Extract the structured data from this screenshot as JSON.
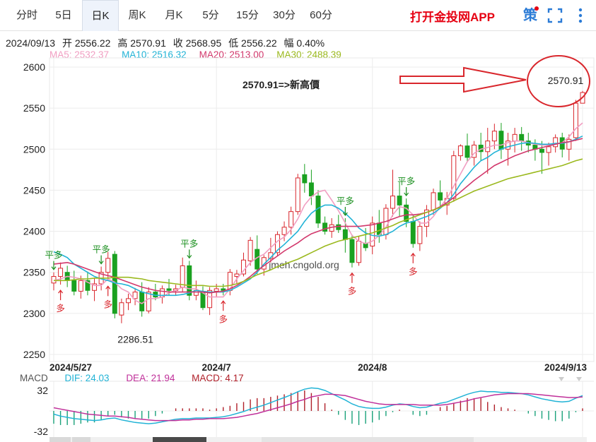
{
  "tabs": [
    {
      "label": "分时",
      "active": false
    },
    {
      "label": "5日",
      "active": false
    },
    {
      "label": "日K",
      "active": true
    },
    {
      "label": "周K",
      "active": false
    },
    {
      "label": "月K",
      "active": false
    },
    {
      "label": "5分",
      "active": false
    },
    {
      "label": "15分",
      "active": false
    },
    {
      "label": "30分",
      "active": false
    },
    {
      "label": "60分",
      "active": false
    }
  ],
  "toolbar": {
    "app_link": "打开金投网APP",
    "strategy_icon_text": "策",
    "fullscreen_icon": "fullscreen-icon",
    "more_icon": "more-icon"
  },
  "info": {
    "date": "2024/09/13",
    "open_label": "开",
    "open": "2556.22",
    "high_label": "高",
    "high": "2570.91",
    "close_label": "收",
    "close": "2568.95",
    "low_label": "低",
    "low": "2556.22",
    "change_label": "幅",
    "change": "0.40%"
  },
  "ma_legend": [
    {
      "label": "MA5: 2532.37",
      "color": "#f19ec2"
    },
    {
      "label": "MA10: 2516.32",
      "color": "#21b3d6"
    },
    {
      "label": "MA20: 2513.00",
      "color": "#d2386c"
    },
    {
      "label": "MA30: 2488.39",
      "color": "#9bb91e"
    }
  ],
  "annotation": {
    "text": "2570.91=>新高價",
    "color": "#d9262c"
  },
  "watermark": "jmeh.cngold.org",
  "macd_legend": {
    "title": "MACD",
    "dif": "DIF: 24.03",
    "dea": "DEA: 21.94",
    "macd": "MACD: 4.17"
  },
  "colors": {
    "up": "#d9262c",
    "down": "#1aa120",
    "grid": "#ececec"
  },
  "chart_data": {
    "type": "candlestick",
    "ylim": [
      2250,
      2600
    ],
    "yticks": [
      2250,
      2300,
      2350,
      2400,
      2450,
      2500,
      2550,
      2600
    ],
    "xticks": [
      {
        "label": "2024/5/27",
        "index": 0
      },
      {
        "label": "2024/7",
        "index": 24
      },
      {
        "label": "2024/8",
        "index": 47
      },
      {
        "label": "2024/9/13",
        "index": 78
      }
    ],
    "labels": {
      "low_point": "2286.51",
      "high_point": "2570.91"
    },
    "candles": [
      [
        2337,
        2350,
        2328,
        2345
      ],
      [
        2345,
        2362,
        2335,
        2355
      ],
      [
        2350,
        2358,
        2332,
        2340
      ],
      [
        2340,
        2352,
        2322,
        2327
      ],
      [
        2327,
        2346,
        2318,
        2340
      ],
      [
        2340,
        2351,
        2322,
        2328
      ],
      [
        2328,
        2343,
        2315,
        2336
      ],
      [
        2336,
        2357,
        2328,
        2350
      ],
      [
        2350,
        2375,
        2340,
        2367
      ],
      [
        2372,
        2376,
        2294,
        2300
      ],
      [
        2298,
        2318,
        2288,
        2313
      ],
      [
        2313,
        2324,
        2304,
        2318
      ],
      [
        2318,
        2331,
        2310,
        2326
      ],
      [
        2326,
        2338,
        2296,
        2303
      ],
      [
        2303,
        2332,
        2300,
        2326
      ],
      [
        2326,
        2336,
        2316,
        2320
      ],
      [
        2320,
        2334,
        2312,
        2330
      ],
      [
        2330,
        2342,
        2322,
        2328
      ],
      [
        2328,
        2335,
        2322,
        2330
      ],
      [
        2332,
        2368,
        2326,
        2358
      ],
      [
        2358,
        2364,
        2316,
        2322
      ],
      [
        2322,
        2340,
        2316,
        2328
      ],
      [
        2326,
        2333,
        2304,
        2307
      ],
      [
        2307,
        2332,
        2298,
        2328
      ],
      [
        2327,
        2336,
        2320,
        2330
      ],
      [
        2330,
        2336,
        2322,
        2328
      ],
      [
        2328,
        2354,
        2322,
        2350
      ],
      [
        2345,
        2353,
        2336,
        2348
      ],
      [
        2348,
        2374,
        2345,
        2365
      ],
      [
        2364,
        2393,
        2358,
        2389
      ],
      [
        2378,
        2395,
        2348,
        2354
      ],
      [
        2354,
        2371,
        2346,
        2368
      ],
      [
        2367,
        2392,
        2362,
        2374
      ],
      [
        2374,
        2400,
        2370,
        2396
      ],
      [
        2396,
        2412,
        2388,
        2405
      ],
      [
        2405,
        2430,
        2396,
        2424
      ],
      [
        2424,
        2470,
        2420,
        2465
      ],
      [
        2469,
        2482,
        2447,
        2459
      ],
      [
        2459,
        2475,
        2432,
        2443
      ],
      [
        2443,
        2450,
        2404,
        2410
      ],
      [
        2410,
        2418,
        2396,
        2400
      ],
      [
        2400,
        2416,
        2392,
        2408
      ],
      [
        2408,
        2420,
        2398,
        2402
      ],
      [
        2402,
        2416,
        2374,
        2390
      ],
      [
        2390,
        2396,
        2356,
        2362
      ],
      [
        2362,
        2394,
        2358,
        2388
      ],
      [
        2385,
        2404,
        2376,
        2380
      ],
      [
        2382,
        2418,
        2372,
        2410
      ],
      [
        2410,
        2426,
        2386,
        2396
      ],
      [
        2396,
        2433,
        2390,
        2428
      ],
      [
        2428,
        2475,
        2418,
        2443
      ],
      [
        2443,
        2460,
        2418,
        2432
      ],
      [
        2432,
        2440,
        2405,
        2412
      ],
      [
        2412,
        2420,
        2380,
        2385
      ],
      [
        2385,
        2412,
        2376,
        2406
      ],
      [
        2406,
        2432,
        2393,
        2426
      ],
      [
        2426,
        2452,
        2420,
        2447
      ],
      [
        2447,
        2462,
        2428,
        2438
      ],
      [
        2432,
        2448,
        2420,
        2440
      ],
      [
        2440,
        2498,
        2436,
        2492
      ],
      [
        2492,
        2506,
        2486,
        2504
      ],
      [
        2504,
        2519,
        2484,
        2490
      ],
      [
        2490,
        2510,
        2480,
        2505
      ],
      [
        2505,
        2520,
        2486,
        2497
      ],
      [
        2497,
        2526,
        2470,
        2510
      ],
      [
        2510,
        2531,
        2500,
        2522
      ],
      [
        2522,
        2532,
        2488,
        2500
      ],
      [
        2500,
        2520,
        2480,
        2510
      ],
      [
        2510,
        2526,
        2496,
        2518
      ],
      [
        2518,
        2527,
        2498,
        2510
      ],
      [
        2510,
        2520,
        2496,
        2505
      ],
      [
        2505,
        2512,
        2486,
        2500
      ],
      [
        2500,
        2510,
        2470,
        2496
      ],
      [
        2496,
        2508,
        2480,
        2503
      ],
      [
        2503,
        2518,
        2496,
        2514
      ],
      [
        2514,
        2520,
        2490,
        2500
      ],
      [
        2500,
        2518,
        2486,
        2512
      ],
      [
        2514,
        2560,
        2510,
        2556
      ],
      [
        2556,
        2571,
        2556,
        2569
      ]
    ],
    "series": [
      {
        "name": "MA5",
        "color": "#f19ec2",
        "values": [
          2340,
          2342,
          2345,
          2344,
          2342,
          2338,
          2334,
          2334,
          2342,
          2338,
          2330,
          2326,
          2316,
          2312,
          2318,
          2318,
          2320,
          2325,
          2328,
          2332,
          2330,
          2330,
          2325,
          2320,
          2320,
          2320,
          2330,
          2342,
          2352,
          2362,
          2368,
          2372,
          2380,
          2388,
          2393,
          2402,
          2415,
          2432,
          2442,
          2448,
          2450,
          2438,
          2425,
          2410,
          2395,
          2388,
          2385,
          2388,
          2395,
          2405,
          2420,
          2430,
          2428,
          2420,
          2410,
          2410,
          2418,
          2430,
          2440,
          2455,
          2470,
          2485,
          2495,
          2500,
          2502,
          2505,
          2505,
          2508,
          2510,
          2510,
          2508,
          2506,
          2505,
          2505,
          2506,
          2508,
          2515,
          2525,
          2532
        ]
      },
      {
        "name": "MA10",
        "color": "#21b3d6",
        "values": [
          2375,
          2372,
          2368,
          2360,
          2355,
          2350,
          2345,
          2342,
          2340,
          2337,
          2336,
          2334,
          2330,
          2326,
          2324,
          2322,
          2322,
          2322,
          2322,
          2323,
          2325,
          2328,
          2327,
          2326,
          2326,
          2326,
          2328,
          2332,
          2337,
          2342,
          2350,
          2360,
          2368,
          2377,
          2384,
          2392,
          2400,
          2412,
          2422,
          2428,
          2432,
          2432,
          2428,
          2422,
          2414,
          2404,
          2398,
          2395,
          2394,
          2396,
          2400,
          2406,
          2410,
          2412,
          2415,
          2418,
          2422,
          2428,
          2435,
          2445,
          2458,
          2468,
          2478,
          2486,
          2490,
          2496,
          2500,
          2503,
          2505,
          2507,
          2508,
          2507,
          2506,
          2506,
          2507,
          2507,
          2509,
          2512,
          2516
        ]
      },
      {
        "name": "MA20",
        "color": "#d2386c",
        "values": [
          2360,
          2361,
          2362,
          2360,
          2357,
          2354,
          2351,
          2348,
          2346,
          2344,
          2341,
          2338,
          2335,
          2332,
          2330,
          2328,
          2327,
          2326,
          2326,
          2326,
          2326,
          2326,
          2326,
          2325,
          2326,
          2327,
          2330,
          2334,
          2339,
          2345,
          2352,
          2358,
          2364,
          2370,
          2376,
          2381,
          2386,
          2392,
          2397,
          2400,
          2403,
          2405,
          2406,
          2406,
          2406,
          2406,
          2407,
          2408,
          2410,
          2412,
          2415,
          2418,
          2420,
          2420,
          2421,
          2423,
          2426,
          2430,
          2435,
          2441,
          2448,
          2455,
          2462,
          2468,
          2474,
          2480,
          2484,
          2488,
          2492,
          2495,
          2498,
          2500,
          2502,
          2504,
          2506,
          2508,
          2509,
          2511,
          2513
        ]
      },
      {
        "name": "MA30",
        "color": "#9bb91e",
        "values": [
          2340,
          2340,
          2340,
          2341,
          2342,
          2342,
          2343,
          2343,
          2343,
          2344,
          2344,
          2344,
          2343,
          2342,
          2340,
          2339,
          2338,
          2337,
          2336,
          2335,
          2334,
          2334,
          2334,
          2333,
          2333,
          2333,
          2334,
          2336,
          2339,
          2343,
          2347,
          2350,
          2353,
          2357,
          2360,
          2363,
          2366,
          2370,
          2374,
          2378,
          2382,
          2385,
          2388,
          2390,
          2392,
          2394,
          2396,
          2398,
          2401,
          2404,
          2407,
          2411,
          2414,
          2417,
          2420,
          2423,
          2426,
          2429,
          2433,
          2437,
          2441,
          2445,
          2449,
          2452,
          2455,
          2458,
          2461,
          2464,
          2466,
          2468,
          2470,
          2472,
          2474,
          2476,
          2478,
          2480,
          2483,
          2486,
          2488
        ]
      }
    ],
    "signals": [
      {
        "index": 0,
        "type": "平多",
        "dir": "up"
      },
      {
        "index": 1,
        "type": "多",
        "dir": "up"
      },
      {
        "index": 7,
        "type": "平多",
        "dir": "up"
      },
      {
        "index": 8,
        "type": "多",
        "dir": "up"
      },
      {
        "index": 20,
        "type": "平多",
        "dir": "up"
      },
      {
        "index": 25,
        "type": "多",
        "dir": "up"
      },
      {
        "index": 43,
        "type": "平多",
        "dir": "up"
      },
      {
        "index": 44,
        "type": "多",
        "dir": "up"
      },
      {
        "index": 52,
        "type": "平多",
        "dir": "up"
      },
      {
        "index": 53,
        "type": "多",
        "dir": "up"
      }
    ],
    "macd": {
      "ylim": [
        -32,
        32
      ],
      "yticks": [
        32,
        -32
      ],
      "dif": [
        -5,
        -8,
        -10,
        -12,
        -13,
        -14,
        -15,
        -14,
        -12,
        -11,
        -14,
        -16,
        -18,
        -19,
        -20,
        -19,
        -17,
        -15,
        -13,
        -12,
        -12,
        -11,
        -11,
        -11,
        -10,
        -9,
        -7,
        -4,
        -1,
        3,
        6,
        9,
        13,
        17,
        21,
        25,
        30,
        34,
        36,
        35,
        32,
        27,
        22,
        17,
        11,
        7,
        5,
        4,
        4,
        6,
        9,
        11,
        10,
        7,
        5,
        6,
        9,
        12,
        14,
        18,
        22,
        26,
        29,
        31,
        30,
        30,
        29,
        29,
        28,
        27,
        25,
        22,
        19,
        17,
        15,
        14,
        15,
        20,
        24
      ],
      "dea": [
        5,
        3,
        1,
        -1,
        -3,
        -5,
        -6,
        -7,
        -8,
        -8,
        -9,
        -10,
        -12,
        -13,
        -14,
        -15,
        -15,
        -15,
        -15,
        -14,
        -14,
        -13,
        -13,
        -12,
        -12,
        -12,
        -11,
        -10,
        -8,
        -6,
        -4,
        -1,
        2,
        5,
        8,
        11,
        15,
        18,
        22,
        24,
        26,
        26,
        25,
        24,
        21,
        18,
        15,
        13,
        11,
        10,
        10,
        10,
        10,
        10,
        9,
        9,
        9,
        9,
        10,
        12,
        14,
        16,
        19,
        21,
        23,
        25,
        26,
        27,
        27,
        27,
        27,
        26,
        25,
        24,
        23,
        22,
        21,
        21,
        22
      ],
      "hist": [
        -20,
        -22,
        -22,
        -22,
        -20,
        -18,
        -18,
        -14,
        -8,
        -6,
        -10,
        -12,
        -12,
        -12,
        -12,
        -8,
        -4,
        0,
        4,
        4,
        4,
        4,
        4,
        2,
        4,
        6,
        8,
        12,
        14,
        18,
        20,
        20,
        22,
        24,
        26,
        28,
        30,
        32,
        28,
        22,
        12,
        2,
        -6,
        -14,
        -20,
        -22,
        -20,
        -18,
        -14,
        -8,
        -2,
        2,
        0,
        -6,
        -8,
        -6,
        0,
        6,
        8,
        12,
        16,
        20,
        20,
        20,
        14,
        10,
        6,
        4,
        2,
        0,
        -4,
        -8,
        -12,
        -14,
        -16,
        -16,
        -12,
        -2,
        4
      ]
    }
  }
}
